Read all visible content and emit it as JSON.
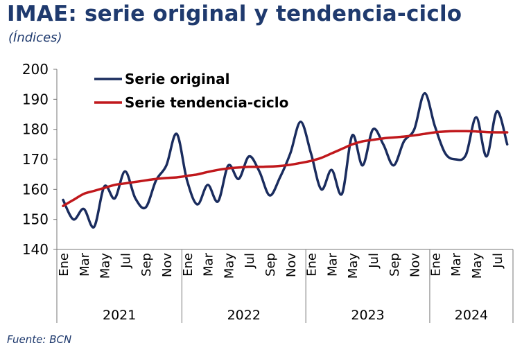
{
  "title": "IMAE: serie original y tendencia-ciclo",
  "subtitle": "(Índices)",
  "source": "Fuente: BCN",
  "chart_data": {
    "type": "line",
    "title": "IMAE: serie original y tendencia-ciclo",
    "subtitle": "(Índices)",
    "ylim": [
      140,
      200
    ],
    "yticks": [
      140,
      150,
      160,
      170,
      180,
      190,
      200
    ],
    "grid": false,
    "legend_position": "top-left",
    "x": [
      "Ene 2021",
      "Feb 2021",
      "Mar 2021",
      "Abr 2021",
      "May 2021",
      "Jun 2021",
      "Jul 2021",
      "Ago 2021",
      "Sep 2021",
      "Oct 2021",
      "Nov 2021",
      "Dic 2021",
      "Ene 2022",
      "Feb 2022",
      "Mar 2022",
      "Abr 2022",
      "May 2022",
      "Jun 2022",
      "Jul 2022",
      "Ago 2022",
      "Sep 2022",
      "Oct 2022",
      "Nov 2022",
      "Dic 2022",
      "Ene 2023",
      "Feb 2023",
      "Mar 2023",
      "Abr 2023",
      "May 2023",
      "Jun 2023",
      "Jul 2023",
      "Ago 2023",
      "Sep 2023",
      "Oct 2023",
      "Nov 2023",
      "Dic 2023",
      "Ene 2024",
      "Feb 2024",
      "Mar 2024",
      "Abr 2024",
      "May 2024",
      "Jun 2024",
      "Jul 2024",
      "Ago 2024"
    ],
    "month_tick_labels": [
      "Ene",
      "Mar",
      "May",
      "Jul",
      "Sep",
      "Nov",
      "Ene",
      "Mar",
      "May",
      "Jul",
      "Sep",
      "Nov",
      "Ene",
      "Mar",
      "May",
      "Jul",
      "Sep",
      "Nov",
      "Ene",
      "Mar",
      "May",
      "Jul"
    ],
    "year_labels": [
      "2021",
      "2022",
      "2023",
      "2024"
    ],
    "series": [
      {
        "name": "Serie original",
        "color": "#1a2c5e",
        "values": [
          156.5,
          150.0,
          153.5,
          147.5,
          161.0,
          157.0,
          166.0,
          157.0,
          154.0,
          163.0,
          168.0,
          178.5,
          163.0,
          155.0,
          161.5,
          156.0,
          168.0,
          163.5,
          171.0,
          166.0,
          158.0,
          164.0,
          172.0,
          182.5,
          172.0,
          160.0,
          166.5,
          158.5,
          178.0,
          168.0,
          180.0,
          175.0,
          168.0,
          176.0,
          180.0,
          192.0,
          181.0,
          172.0,
          170.0,
          171.5,
          184.0,
          171.0,
          186.0,
          175.0
        ]
      },
      {
        "name": "Serie tendencia-ciclo",
        "color": "#c0181c",
        "values": [
          154.5,
          156.5,
          158.5,
          159.5,
          160.5,
          161.5,
          162.0,
          162.5,
          163.0,
          163.5,
          163.8,
          164.0,
          164.5,
          165.0,
          165.8,
          166.5,
          167.0,
          167.3,
          167.5,
          167.5,
          167.6,
          167.8,
          168.2,
          168.8,
          169.5,
          170.5,
          172.0,
          173.5,
          175.0,
          176.0,
          176.5,
          177.0,
          177.3,
          177.6,
          178.0,
          178.5,
          179.0,
          179.3,
          179.4,
          179.4,
          179.3,
          179.1,
          179.0,
          179.0
        ]
      }
    ]
  }
}
